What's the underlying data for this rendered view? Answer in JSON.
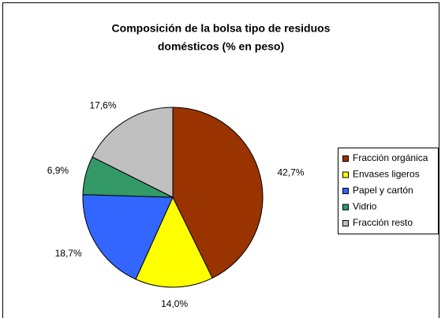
{
  "chart_data": {
    "type": "pie",
    "title": [
      "Composición de la bolsa tipo de residuos",
      "domésticos (% en peso)"
    ],
    "categories": [
      "Fracción orgánica",
      "Envases ligeros",
      "Papel y cartón",
      "Vidrio",
      "Fracción resto"
    ],
    "values": [
      42.7,
      14.0,
      18.7,
      6.9,
      17.6
    ],
    "value_labels": [
      "42,7%",
      "14,0%",
      "18,7%",
      "6,9%",
      "17,6%"
    ],
    "colors": [
      "#993300",
      "#ffff00",
      "#3366ff",
      "#339966",
      "#c0c0c0"
    ],
    "legend": "right"
  }
}
